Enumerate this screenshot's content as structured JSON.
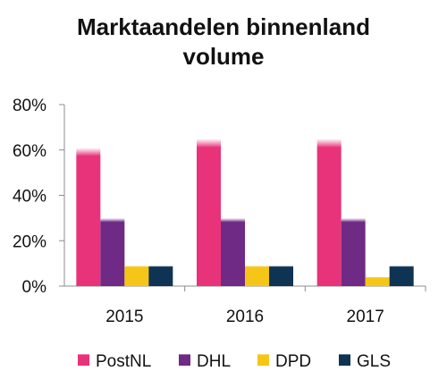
{
  "chart_data": {
    "type": "bar",
    "title_lines": [
      "Marktaandelen binnenland",
      "volume"
    ],
    "categories": [
      "2015",
      "2016",
      "2017"
    ],
    "series": [
      {
        "name": "PostNL",
        "values": [
          61,
          65,
          65
        ],
        "color": "#e8337a"
      },
      {
        "name": "DHL",
        "values": [
          30,
          30,
          30
        ],
        "color": "#6f2a85"
      },
      {
        "name": "DPD",
        "values": [
          9,
          9,
          4
        ],
        "color": "#f5c518"
      },
      {
        "name": "GLS",
        "values": [
          9,
          9,
          9
        ],
        "color": "#0f3352"
      }
    ],
    "ylim": [
      0,
      80
    ],
    "yticks": [
      0,
      20,
      40,
      60,
      80
    ],
    "ytick_labels": [
      "0%",
      "20%",
      "40%",
      "60%",
      "80%"
    ],
    "grid": false,
    "legend_position": "bottom"
  }
}
